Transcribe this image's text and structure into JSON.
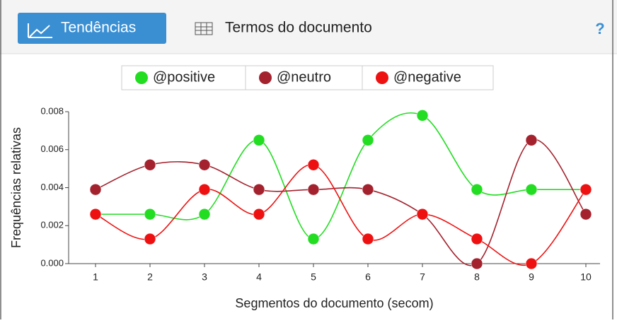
{
  "toolbar": {
    "tabs": [
      "Tendências",
      "Termos do documento"
    ],
    "help": "?"
  },
  "chart_data": {
    "type": "line",
    "xlabel": "Segmentos do documento (secom)",
    "ylabel": "Frequências relativas",
    "categories": [
      "1",
      "2",
      "3",
      "4",
      "5",
      "6",
      "7",
      "8",
      "9",
      "10"
    ],
    "series": [
      {
        "name": "@positive",
        "color": "#22dd22",
        "values": [
          0.0026,
          0.0026,
          0.0026,
          0.0065,
          0.0013,
          0.0065,
          0.0078,
          0.0039,
          0.0039,
          0.0039
        ]
      },
      {
        "name": "@neutro",
        "color": "#a3222e",
        "values": [
          0.0039,
          0.0052,
          0.0052,
          0.0039,
          0.0039,
          0.0039,
          0.0026,
          0,
          0.0065,
          0.0026
        ]
      },
      {
        "name": "@negative",
        "color": "#ee1111",
        "values": [
          0.0026,
          0.0013,
          0.0039,
          0.0026,
          0.0052,
          0.0013,
          0.0026,
          0.0013,
          0,
          0.0039
        ]
      }
    ],
    "ylim": [
      0,
      0.008
    ],
    "yticks": [
      {
        "value": 0,
        "label": "0.000"
      },
      {
        "value": 0.002,
        "label": "0.002"
      },
      {
        "value": 0.004,
        "label": "0.004"
      },
      {
        "value": 0.006,
        "label": "0.006"
      },
      {
        "value": 0.008,
        "label": "0.008"
      }
    ],
    "legend": "top"
  }
}
